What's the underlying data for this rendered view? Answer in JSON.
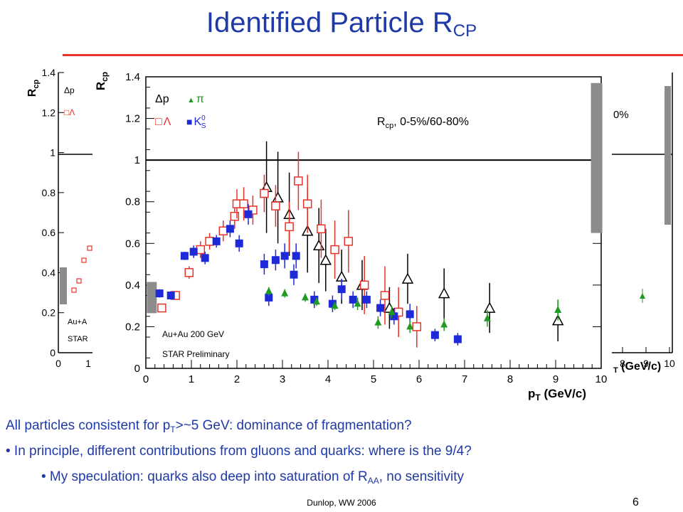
{
  "slide": {
    "title_main": "Identified Particle R",
    "title_sub": "CP",
    "footer": "Dunlop, WW 2006",
    "page_number": "6",
    "bullets": [
      {
        "pre": "All particles consistent for p",
        "sub": "T",
        "post": ">~5 GeV: dominance of fragmentation?"
      },
      {
        "pre": "• In principle, different contributions from gluons and quarks: where is the 9/4?",
        "sub": "",
        "post": ""
      },
      {
        "pre": "• My speculation: quarks also deep into saturation of R",
        "sub": "AA",
        "post": ", no sensitivity"
      }
    ],
    "colors": {
      "title": "#1f3aa6",
      "rule": "#e8322a",
      "proton": "#000000",
      "lambda": "#e8322a",
      "k0s": "#1e2ad8",
      "pion": "#1f9a22",
      "band": "#8c8c8c"
    }
  },
  "chart_data": [
    {
      "type": "scatter",
      "xlabel": "p",
      "xlabel_sub": "T",
      "xlabel_unit": " (GeV/c)",
      "ylabel": "R",
      "ylabel_sub": "cp",
      "xlim": [
        0,
        10
      ],
      "ylim": [
        0,
        1.4
      ],
      "x_ticks": [
        "0",
        "1",
        "2",
        "3",
        "4",
        "5",
        "6",
        "7",
        "8",
        "9",
        "10"
      ],
      "y_ticks": [
        "0",
        "0.2",
        "0.4",
        "0.6",
        "0.8",
        "1",
        "1.2",
        "1.4"
      ],
      "reference_line": 1.0,
      "annotation": "R",
      "annotation_sub": "cp",
      "annotation_rest": ", 0-5%/60-80%",
      "label_system": "Au+Au 200 GeV",
      "label_prelim": "STAR Preliminary",
      "norm_band_left": {
        "x": 0.13,
        "low": 0.265,
        "high": 0.415
      },
      "norm_band_right": {
        "x": 9.9,
        "low": 0.65,
        "high": 1.37
      },
      "legend": [
        {
          "symbol": "Δ",
          "name": "p"
        },
        {
          "symbol": "▲",
          "name": "π"
        },
        {
          "symbol": "□",
          "name": "Λ"
        },
        {
          "symbol": "■",
          "name": "K",
          "sup": "0",
          "sub": "S"
        }
      ],
      "series": [
        {
          "name": "p",
          "marker": "open-triangle",
          "color": "#000000",
          "points": [
            [
              2.65,
              0.87,
              0.22
            ],
            [
              2.9,
              0.82,
              0.22
            ],
            [
              3.15,
              0.74,
              0.2
            ],
            [
              3.55,
              0.66,
              0.2
            ],
            [
              3.8,
              0.59,
              0.18
            ],
            [
              3.95,
              0.52,
              0.15
            ],
            [
              4.3,
              0.44,
              0.13
            ],
            [
              4.75,
              0.4,
              0.12
            ],
            [
              5.35,
              0.29,
              0.1
            ],
            [
              5.75,
              0.43,
              0.12
            ],
            [
              6.55,
              0.36,
              0.12
            ],
            [
              7.55,
              0.29,
              0.12
            ],
            [
              9.05,
              0.23,
              0.1
            ]
          ]
        },
        {
          "name": "Λ",
          "marker": "open-square",
          "color": "#e8322a",
          "points": [
            [
              0.35,
              0.29,
              0.02
            ],
            [
              0.65,
              0.35,
              0.02
            ],
            [
              0.95,
              0.46,
              0.03
            ],
            [
              1.2,
              0.57,
              0.04
            ],
            [
              1.4,
              0.61,
              0.04
            ],
            [
              1.7,
              0.66,
              0.05
            ],
            [
              1.95,
              0.73,
              0.06
            ],
            [
              2.0,
              0.79,
              0.07
            ],
            [
              2.15,
              0.79,
              0.08
            ],
            [
              2.35,
              0.76,
              0.07
            ],
            [
              2.6,
              0.84,
              0.09
            ],
            [
              2.85,
              0.78,
              0.1
            ],
            [
              3.15,
              0.68,
              0.12
            ],
            [
              3.35,
              0.9,
              0.14
            ],
            [
              3.55,
              0.79,
              0.14
            ],
            [
              3.85,
              0.67,
              0.14
            ],
            [
              4.15,
              0.57,
              0.14
            ],
            [
              4.45,
              0.61,
              0.15
            ],
            [
              4.8,
              0.4,
              0.14
            ],
            [
              5.25,
              0.35,
              0.14
            ],
            [
              5.55,
              0.27,
              0.12
            ],
            [
              5.95,
              0.2,
              0.1
            ]
          ]
        },
        {
          "name": "K0S",
          "marker": "filled-square",
          "color": "#1e2ad8",
          "points": [
            [
              0.3,
              0.36,
              0.02
            ],
            [
              0.55,
              0.35,
              0.02
            ],
            [
              0.85,
              0.54,
              0.02
            ],
            [
              1.05,
              0.56,
              0.03
            ],
            [
              1.3,
              0.53,
              0.03
            ],
            [
              1.55,
              0.61,
              0.03
            ],
            [
              1.85,
              0.67,
              0.04
            ],
            [
              2.05,
              0.6,
              0.04
            ],
            [
              2.25,
              0.74,
              0.05
            ],
            [
              2.6,
              0.5,
              0.05
            ],
            [
              2.85,
              0.52,
              0.05
            ],
            [
              3.05,
              0.54,
              0.06
            ],
            [
              3.3,
              0.54,
              0.06
            ],
            [
              2.7,
              0.34,
              0.04
            ],
            [
              3.25,
              0.45,
              0.05
            ],
            [
              3.7,
              0.33,
              0.04
            ],
            [
              4.1,
              0.31,
              0.04
            ],
            [
              4.3,
              0.38,
              0.05
            ],
            [
              4.55,
              0.33,
              0.04
            ],
            [
              4.85,
              0.33,
              0.04
            ],
            [
              5.15,
              0.29,
              0.04
            ],
            [
              5.45,
              0.25,
              0.04
            ],
            [
              5.8,
              0.26,
              0.05
            ],
            [
              6.35,
              0.16,
              0.03
            ],
            [
              6.85,
              0.14,
              0.03
            ]
          ]
        },
        {
          "name": "π",
          "marker": "filled-triangle",
          "color": "#1f9a22",
          "points": [
            [
              2.7,
              0.37,
              0.02
            ],
            [
              3.05,
              0.36,
              0.02
            ],
            [
              3.5,
              0.34,
              0.02
            ],
            [
              3.75,
              0.32,
              0.02
            ],
            [
              4.15,
              0.3,
              0.02
            ],
            [
              4.65,
              0.31,
              0.03
            ],
            [
              5.1,
              0.22,
              0.03
            ],
            [
              5.4,
              0.27,
              0.03
            ],
            [
              5.8,
              0.2,
              0.03
            ],
            [
              6.55,
              0.21,
              0.03
            ],
            [
              7.5,
              0.24,
              0.04
            ],
            [
              9.05,
              0.28,
              0.05
            ]
          ]
        }
      ]
    },
    {
      "type": "scatter",
      "ylabel": "R",
      "ylabel_sub": "cp",
      "ylim": [
        0,
        1.4
      ],
      "y_ticks": [
        "0",
        "0.2",
        "0.4",
        "0.6",
        "0.8",
        "1",
        "1.2",
        "1.4"
      ],
      "x_ticks": [
        "0",
        "1"
      ],
      "legend": [
        {
          "symbol": "Δ",
          "name": "p"
        },
        {
          "symbol": "□",
          "name": "Λ"
        }
      ],
      "label_system": "Au+A",
      "label_prelim": "STAR"
    },
    {
      "type": "scatter",
      "annotation": "0%",
      "x_ticks": [
        "8",
        "9",
        "10"
      ],
      "xlabel_tail": "T",
      "xlabel_unit": " (GeV/c)"
    }
  ]
}
